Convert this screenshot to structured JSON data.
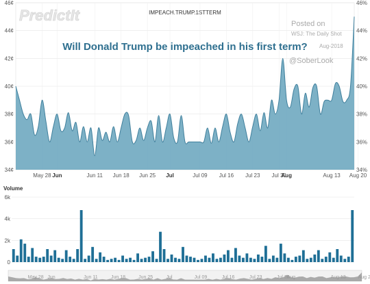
{
  "header": {
    "logo_text": "PredictIt",
    "ticker": "IMPEACH.TRUMP.1STTERM",
    "headline": "Will Donald Trump be impeached in his first term?"
  },
  "credit": {
    "line1": "Posted on",
    "line2": "WSJ: The Daily Shot",
    "line3": "Aug-2018",
    "line4": "@SoberLook"
  },
  "chart_data": [
    {
      "type": "area",
      "title": "IMPEACH.TRUMP.1STTERM",
      "ylabel": "",
      "ylim": [
        34,
        46
      ],
      "y_ticks_left": [
        "34¢",
        "36¢",
        "38¢",
        "40¢",
        "42¢",
        "44¢",
        "46¢"
      ],
      "y_ticks_right": [
        "34%",
        "36%",
        "38%",
        "40%",
        "42%",
        "44%",
        "46%"
      ],
      "x_ticks": [
        {
          "day": 7,
          "label": "May 28",
          "bold": false
        },
        {
          "day": 11,
          "label": "Jun",
          "bold": true
        },
        {
          "day": 21,
          "label": "Jun 11",
          "bold": false
        },
        {
          "day": 28,
          "label": "Jun 18",
          "bold": false
        },
        {
          "day": 35,
          "label": "Jun 25",
          "bold": false
        },
        {
          "day": 41,
          "label": "Jul",
          "bold": true
        },
        {
          "day": 49,
          "label": "Jul 09",
          "bold": false
        },
        {
          "day": 56,
          "label": "Jul 16",
          "bold": false
        },
        {
          "day": 63,
          "label": "Jul 23",
          "bold": false
        },
        {
          "day": 70,
          "label": "Jul 30",
          "bold": false
        },
        {
          "day": 72,
          "label": "Aug",
          "bold": true
        },
        {
          "day": 84,
          "label": "Aug 13",
          "bold": false
        },
        {
          "day": 91,
          "label": "Aug 20",
          "bold": false
        }
      ],
      "grid": true,
      "color": "#6fa8c0",
      "series": [
        {
          "values": [
            40.0,
            39.0,
            38.0,
            37.6,
            38.0,
            36.5,
            37.1,
            39.0,
            37.5,
            36.0,
            37.1,
            38.0,
            36.8,
            37.0,
            38.1,
            36.8,
            37.4,
            36.0,
            37.1,
            36.0,
            37.0,
            35.0,
            37.0,
            36.1,
            36.7,
            36.0,
            37.1,
            36.0,
            37.0,
            38.0,
            37.9,
            36.0,
            36.1,
            37.0,
            36.1,
            37.0,
            37.5,
            36.0,
            37.9,
            36.0,
            37.0,
            38.0,
            36.3,
            36.0,
            37.9,
            36.0,
            36.0,
            36.0,
            36.0,
            36.0,
            36.0,
            37.0,
            35.9,
            37.0,
            36.0,
            37.1,
            38.0,
            36.7,
            36.0,
            37.3,
            38.0,
            37.0,
            36.0,
            37.1,
            38.0,
            36.8,
            38.1,
            37.0,
            39.0,
            38.0,
            39.0,
            42.0,
            39.0,
            38.5,
            39.8,
            40.0,
            38.0,
            39.5,
            38.5,
            39.9,
            40.0,
            38.0,
            38.9,
            39.0,
            39.0,
            40.2,
            40.0,
            38.9,
            39.0,
            40.0,
            45.0
          ]
        }
      ]
    },
    {
      "type": "bar",
      "title": "Volume",
      "ylim": [
        0,
        6000
      ],
      "y_ticks": [
        "0",
        "2k",
        "4k",
        "6k"
      ],
      "color": "#1f6f96",
      "values": [
        1200,
        600,
        2100,
        1700,
        500,
        1300,
        500,
        400,
        500,
        1200,
        600,
        1100,
        400,
        300,
        1100,
        500,
        300,
        1200,
        4800,
        300,
        600,
        1400,
        300,
        900,
        500,
        200,
        300,
        400,
        200,
        600,
        300,
        400,
        200,
        800,
        300,
        400,
        500,
        1000,
        300,
        2800,
        1200,
        300,
        700,
        400,
        300,
        1400,
        600,
        500,
        400,
        200,
        300,
        600,
        400,
        800,
        300,
        400,
        700,
        1100,
        400,
        1300,
        600,
        400,
        800,
        400,
        300,
        700,
        500,
        1500,
        300,
        600,
        400,
        1700,
        800,
        400,
        200,
        500,
        600,
        1100,
        300,
        400,
        700,
        1100,
        300,
        500,
        900,
        400,
        1200,
        600,
        300,
        500,
        4800
      ]
    }
  ]
}
